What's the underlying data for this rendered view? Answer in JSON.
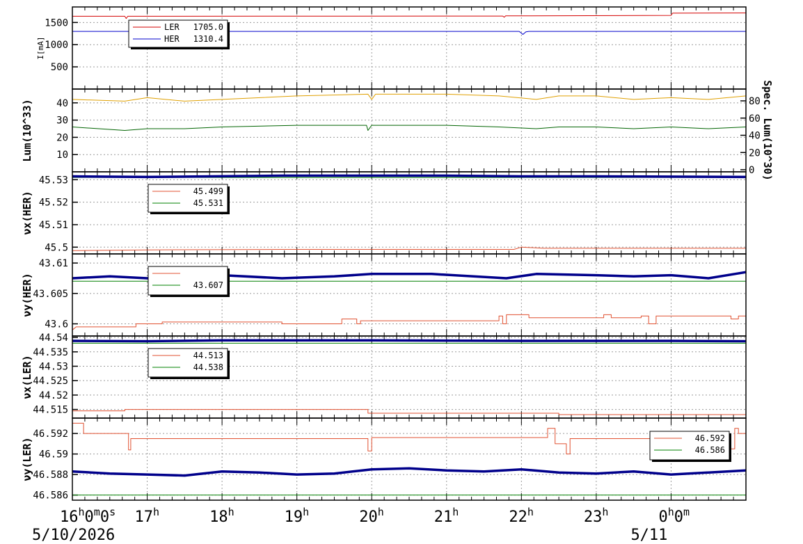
{
  "chart_data": [
    {
      "type": "line",
      "ylabel": "I[mA]",
      "yticks": [
        "500",
        "1000",
        "1500"
      ],
      "ylim": [
        0,
        1850
      ],
      "legend": {
        "placement": "top-left",
        "entries": [
          {
            "name": "LER",
            "value": "1705.0",
            "color": "#d40000"
          },
          {
            "name": "HER",
            "value": "1310.4",
            "color": "#0000cc"
          }
        ]
      },
      "series": [
        {
          "name": "LER",
          "color": "#d40000",
          "points": [
            [
              16.0,
              1640
            ],
            [
              16.7,
              1640
            ],
            [
              16.72,
              1590
            ],
            [
              16.74,
              1640
            ],
            [
              21.75,
              1645
            ],
            [
              21.77,
              1620
            ],
            [
              21.79,
              1650
            ],
            [
              24.0,
              1660
            ],
            [
              24.02,
              1710
            ],
            [
              25.0,
              1715
            ]
          ]
        },
        {
          "name": "HER",
          "color": "#0000cc",
          "points": [
            [
              16.0,
              1300
            ],
            [
              21.97,
              1300
            ],
            [
              22.02,
              1230
            ],
            [
              22.06,
              1290
            ],
            [
              22.1,
              1300
            ],
            [
              25.0,
              1300
            ]
          ]
        }
      ]
    },
    {
      "type": "line",
      "ylabel": "Lum(10^33)",
      "y2label": "Spec. Lum(10^30)",
      "yticks": [
        "10",
        "20",
        "30",
        "40"
      ],
      "y2ticks": [
        "0",
        "20",
        "40",
        "60",
        "80"
      ],
      "ylim": [
        0,
        48
      ],
      "series": [
        {
          "color": "#e0a000",
          "points": [
            [
              16.0,
              42
            ],
            [
              16.7,
              41
            ],
            [
              17.0,
              43
            ],
            [
              17.5,
              41
            ],
            [
              18.0,
              42
            ],
            [
              19.0,
              44
            ],
            [
              19.95,
              45
            ],
            [
              20.0,
              42
            ],
            [
              20.05,
              45
            ],
            [
              21.0,
              45
            ],
            [
              21.7,
              44
            ],
            [
              22.2,
              42
            ],
            [
              22.5,
              44
            ],
            [
              23.0,
              44
            ],
            [
              23.5,
              42
            ],
            [
              24.0,
              43
            ],
            [
              24.5,
              42
            ],
            [
              25.0,
              44
            ]
          ]
        },
        {
          "color": "#006400",
          "points": [
            [
              16.0,
              26
            ],
            [
              16.7,
              24
            ],
            [
              17.0,
              25
            ],
            [
              17.5,
              25
            ],
            [
              18.0,
              26
            ],
            [
              19.0,
              27
            ],
            [
              19.93,
              27
            ],
            [
              19.95,
              24
            ],
            [
              20.0,
              27
            ],
            [
              21.0,
              27
            ],
            [
              21.7,
              26
            ],
            [
              22.2,
              25
            ],
            [
              22.5,
              26
            ],
            [
              23.0,
              26
            ],
            [
              23.5,
              25
            ],
            [
              24.0,
              26
            ],
            [
              24.5,
              25
            ],
            [
              25.0,
              26
            ]
          ]
        }
      ]
    },
    {
      "type": "line",
      "ylabel": "νx(HER)",
      "yticks": [
        "45.5",
        "45.51",
        "45.52",
        "45.53"
      ],
      "ylim": [
        45.497,
        45.5335
      ],
      "legend": {
        "placement": "top-left",
        "entries": [
          {
            "value": "45.499",
            "color": "#e05030"
          },
          {
            "value": "45.531",
            "color": "#008000"
          }
        ]
      },
      "series": [
        {
          "color": "#e05030",
          "points": [
            [
              16.0,
              45.4985
            ],
            [
              17.0,
              45.4988
            ],
            [
              18.8,
              45.499
            ],
            [
              21.9,
              45.499
            ],
            [
              22.0,
              45.5
            ],
            [
              22.3,
              45.4995
            ],
            [
              25.0,
              45.4995
            ]
          ]
        },
        {
          "color": "#008000",
          "points": [
            [
              16.0,
              45.531
            ],
            [
              25.0,
              45.531
            ]
          ]
        },
        {
          "color": "#00008b",
          "points": [
            [
              16.0,
              45.5315
            ],
            [
              17.0,
              45.5312
            ],
            [
              18.8,
              45.5318
            ],
            [
              21.0,
              45.5318
            ],
            [
              22.0,
              45.5315
            ],
            [
              23.0,
              45.5315
            ],
            [
              25.0,
              45.5312
            ]
          ]
        }
      ]
    },
    {
      "type": "line",
      "ylabel": "νy(HER)",
      "yticks": [
        "43.6",
        "43.605",
        "43.61"
      ],
      "ylim": [
        43.598,
        43.6115
      ],
      "legend": {
        "placement": "top-left",
        "entries": [
          {
            "value": "",
            "color": "#e05030"
          },
          {
            "value": "43.607",
            "color": "#008000"
          }
        ]
      },
      "series": [
        {
          "color": "#e05030",
          "points": [
            [
              16.0,
              43.599
            ],
            [
              16.05,
              43.5995
            ],
            [
              16.85,
              43.5995
            ],
            [
              16.85,
              43.6
            ],
            [
              17.2,
              43.6
            ],
            [
              17.2,
              43.6003
            ],
            [
              18.8,
              43.6003
            ],
            [
              18.8,
              43.6
            ],
            [
              19.6,
              43.6
            ],
            [
              19.6,
              43.6008
            ],
            [
              19.8,
              43.6008
            ],
            [
              19.8,
              43.6
            ],
            [
              19.85,
              43.6
            ],
            [
              19.85,
              43.6005
            ],
            [
              21.7,
              43.6005
            ],
            [
              21.7,
              43.6013
            ],
            [
              21.75,
              43.6013
            ],
            [
              21.75,
              43.6
            ],
            [
              21.8,
              43.6
            ],
            [
              21.8,
              43.6015
            ],
            [
              22.1,
              43.6015
            ],
            [
              22.1,
              43.601
            ],
            [
              23.1,
              43.601
            ],
            [
              23.1,
              43.6015
            ],
            [
              23.2,
              43.6015
            ],
            [
              23.2,
              43.601
            ],
            [
              23.6,
              43.601
            ],
            [
              23.6,
              43.6013
            ],
            [
              23.7,
              43.6013
            ],
            [
              23.7,
              43.6
            ],
            [
              23.8,
              43.6
            ],
            [
              23.8,
              43.6013
            ],
            [
              24.8,
              43.6013
            ],
            [
              24.8,
              43.6008
            ],
            [
              24.9,
              43.6008
            ],
            [
              24.9,
              43.6013
            ],
            [
              25.0,
              43.6013
            ]
          ]
        },
        {
          "color": "#008000",
          "points": [
            [
              16.0,
              43.607
            ],
            [
              25.0,
              43.607
            ]
          ]
        },
        {
          "color": "#00008b",
          "points": [
            [
              16.0,
              43.6075
            ],
            [
              16.5,
              43.6078
            ],
            [
              17.0,
              43.6075
            ],
            [
              17.5,
              43.6078
            ],
            [
              18.0,
              43.608
            ],
            [
              18.8,
              43.6075
            ],
            [
              19.5,
              43.6078
            ],
            [
              20.0,
              43.6082
            ],
            [
              20.8,
              43.6082
            ],
            [
              21.8,
              43.6075
            ],
            [
              22.2,
              43.6082
            ],
            [
              23.0,
              43.608
            ],
            [
              23.5,
              43.6078
            ],
            [
              24.0,
              43.608
            ],
            [
              24.5,
              43.6075
            ],
            [
              25.0,
              43.6085
            ]
          ]
        }
      ]
    },
    {
      "type": "line",
      "ylabel": "νx(LER)",
      "yticks": [
        "44.515",
        "44.52",
        "44.525",
        "44.53",
        "44.535",
        "44.54"
      ],
      "ylim": [
        44.512,
        44.5405
      ],
      "legend": {
        "placement": "top-left",
        "entries": [
          {
            "value": "44.513",
            "color": "#e05030"
          },
          {
            "value": "44.538",
            "color": "#008000"
          }
        ]
      },
      "series": [
        {
          "color": "#e05030",
          "points": [
            [
              16.0,
              44.5145
            ],
            [
              16.7,
              44.5145
            ],
            [
              16.7,
              44.515
            ],
            [
              19.95,
              44.515
            ],
            [
              19.95,
              44.5137
            ],
            [
              22.5,
              44.5137
            ],
            [
              22.5,
              44.5132
            ],
            [
              25.0,
              44.5132
            ]
          ]
        },
        {
          "color": "#008000",
          "points": [
            [
              16.0,
              44.538
            ],
            [
              25.0,
              44.538
            ]
          ]
        },
        {
          "color": "#00008b",
          "points": [
            [
              16.0,
              44.5388
            ],
            [
              17.0,
              44.5387
            ],
            [
              18.0,
              44.539
            ],
            [
              20.0,
              44.539
            ],
            [
              22.0,
              44.5388
            ],
            [
              24.0,
              44.5388
            ],
            [
              25.0,
              44.5387
            ]
          ]
        }
      ]
    },
    {
      "type": "line",
      "ylabel": "νy(LER)",
      "yticks": [
        "46.586",
        "46.588",
        "46.59",
        "46.592"
      ],
      "ylim": [
        46.5855,
        46.5935
      ],
      "legend": {
        "placement": "top-right",
        "entries": [
          {
            "value": "46.592",
            "color": "#e05030"
          },
          {
            "value": "46.586",
            "color": "#008000"
          }
        ]
      },
      "series": [
        {
          "color": "#e05030",
          "points": [
            [
              16.0,
              46.593
            ],
            [
              16.15,
              46.593
            ],
            [
              16.15,
              46.592
            ],
            [
              16.75,
              46.592
            ],
            [
              16.75,
              46.5904
            ],
            [
              16.78,
              46.5904
            ],
            [
              16.78,
              46.5915
            ],
            [
              19.95,
              46.5915
            ],
            [
              19.95,
              46.5903
            ],
            [
              20.0,
              46.5903
            ],
            [
              20.0,
              46.5916
            ],
            [
              22.35,
              46.5916
            ],
            [
              22.35,
              46.5925
            ],
            [
              22.45,
              46.5925
            ],
            [
              22.45,
              46.591
            ],
            [
              22.6,
              46.591
            ],
            [
              22.6,
              46.59
            ],
            [
              22.65,
              46.59
            ],
            [
              22.65,
              46.5915
            ],
            [
              24.8,
              46.5915
            ],
            [
              24.8,
              46.5905
            ],
            [
              24.85,
              46.5905
            ],
            [
              24.85,
              46.5925
            ],
            [
              24.9,
              46.5925
            ],
            [
              24.9,
              46.592
            ],
            [
              25.0,
              46.592
            ]
          ]
        },
        {
          "color": "#008000",
          "points": [
            [
              16.0,
              46.586
            ],
            [
              25.0,
              46.586
            ]
          ]
        },
        {
          "color": "#00008b",
          "points": [
            [
              16.0,
              46.5883
            ],
            [
              16.5,
              46.5881
            ],
            [
              17.0,
              46.588
            ],
            [
              17.5,
              46.5879
            ],
            [
              18.0,
              46.5883
            ],
            [
              18.5,
              46.5882
            ],
            [
              19.0,
              46.588
            ],
            [
              19.5,
              46.5881
            ],
            [
              20.0,
              46.5885
            ],
            [
              20.5,
              46.5886
            ],
            [
              21.0,
              46.5884
            ],
            [
              21.5,
              46.5883
            ],
            [
              22.0,
              46.5885
            ],
            [
              22.5,
              46.5882
            ],
            [
              23.0,
              46.5881
            ],
            [
              23.5,
              46.5883
            ],
            [
              24.0,
              46.588
            ],
            [
              24.5,
              46.5882
            ],
            [
              25.0,
              46.5884
            ]
          ]
        }
      ]
    }
  ],
  "x_axis": {
    "xlim": [
      16.0,
      25.0
    ],
    "ticks": [
      {
        "x": 16.0,
        "base": "16",
        "parts": [
          [
            "h",
            "0"
          ],
          [
            "m",
            "0"
          ],
          [
            "s",
            ""
          ]
        ]
      },
      {
        "x": 17.0,
        "base": "17",
        "parts": [
          [
            "h",
            ""
          ]
        ]
      },
      {
        "x": 18.0,
        "base": "18",
        "parts": [
          [
            "h",
            ""
          ]
        ]
      },
      {
        "x": 19.0,
        "base": "19",
        "parts": [
          [
            "h",
            ""
          ]
        ]
      },
      {
        "x": 20.0,
        "base": "20",
        "parts": [
          [
            "h",
            ""
          ]
        ]
      },
      {
        "x": 21.0,
        "base": "21",
        "parts": [
          [
            "h",
            ""
          ]
        ]
      },
      {
        "x": 22.0,
        "base": "22",
        "parts": [
          [
            "h",
            ""
          ]
        ]
      },
      {
        "x": 23.0,
        "base": "23",
        "parts": [
          [
            "h",
            ""
          ]
        ]
      },
      {
        "x": 24.0,
        "base": "0",
        "parts": [
          [
            "h",
            "0"
          ],
          [
            "m",
            ""
          ]
        ]
      }
    ],
    "dates": [
      {
        "x": 16.0,
        "text": "5/10/2026"
      },
      {
        "x": 24.0,
        "text": "5/11"
      }
    ]
  }
}
